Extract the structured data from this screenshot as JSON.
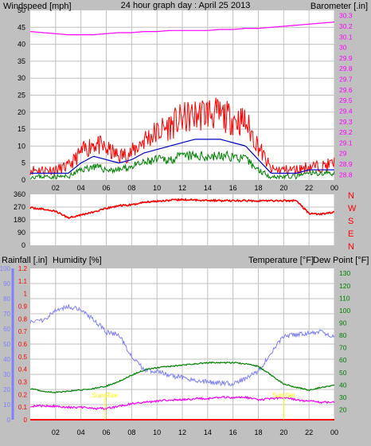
{
  "colors": {
    "background": "#c0c0c0",
    "plot_bg": "#ffffff",
    "windspeed": "#ff0000",
    "wind_avg": "#0000c0",
    "wind_min": "#008000",
    "barometer": "#ff00ff",
    "title": "#000080",
    "direction": "#ff0000",
    "rainfall": "#ff0000",
    "humidity": "#8080ff",
    "temperature": "#008000",
    "dew_point": "#ff00ff",
    "sun_label": "#ffff00",
    "grid": "#c0c0c0"
  },
  "chart_data": [
    {
      "type": "line",
      "panel": "wind-barometer",
      "title": "24 hour graph day : April 25 2013",
      "ylabel": "Windspeed [mph]",
      "y2label": "Barometer [.in]",
      "ylim": [
        0,
        50
      ],
      "y_ticks": [
        "0",
        "5",
        "10",
        "15",
        "20",
        "25",
        "30",
        "35",
        "40",
        "45",
        "50"
      ],
      "y2lim": [
        28.75,
        30.35
      ],
      "y2_ticks": [
        "28.8",
        "28.9",
        "29",
        "29.1",
        "29.2",
        "29.3",
        "29.4",
        "29.5",
        "29.6",
        "29.7",
        "29.8",
        "29.9",
        "30",
        "30.1",
        "30.2",
        "30.3"
      ],
      "x_ticks": [
        "02",
        "04",
        "06",
        "08",
        "10",
        "12",
        "14",
        "16",
        "18",
        "20",
        "22",
        "00"
      ],
      "grid": true,
      "x": [
        0,
        1,
        2,
        3,
        4,
        5,
        6,
        7,
        8,
        9,
        10,
        11,
        12,
        13,
        14,
        15,
        16,
        17,
        18,
        19,
        20,
        21,
        22,
        23,
        24
      ],
      "series": [
        {
          "key": "windspeed",
          "values": [
            3,
            3,
            3,
            4,
            8,
            11,
            9,
            7,
            8,
            12,
            14,
            16,
            18,
            19,
            20,
            19,
            18,
            17,
            10,
            3,
            3,
            3,
            4,
            4,
            5
          ]
        },
        {
          "key": "wind_avg",
          "values": [
            2,
            2,
            2,
            2,
            5,
            7,
            6,
            5,
            6,
            8,
            9,
            10,
            11,
            12,
            12,
            12,
            11,
            10,
            6,
            2,
            2,
            2,
            3,
            3,
            3
          ]
        },
        {
          "key": "wind_min",
          "values": [
            1,
            1,
            1,
            1,
            3,
            4,
            3,
            3,
            4,
            5,
            6,
            6,
            7,
            7,
            7,
            7,
            7,
            6,
            3,
            1,
            1,
            1,
            2,
            2,
            2
          ]
        },
        {
          "key": "barometer",
          "axis": "y2",
          "values": [
            30.15,
            30.14,
            30.13,
            30.12,
            30.12,
            30.12,
            30.13,
            30.14,
            30.14,
            30.15,
            30.15,
            30.16,
            30.16,
            30.16,
            30.16,
            30.17,
            30.17,
            30.18,
            30.18,
            30.19,
            30.2,
            30.21,
            30.22,
            30.23,
            30.24
          ]
        }
      ]
    },
    {
      "type": "line",
      "panel": "wind-direction",
      "ylim": [
        0,
        360
      ],
      "y_ticks": [
        "0",
        "90",
        "180",
        "270",
        "360"
      ],
      "compass_labels": [
        "N",
        "W",
        "S",
        "E",
        "N"
      ],
      "x_ticks": [
        "02",
        "04",
        "06",
        "08",
        "10",
        "12",
        "14",
        "16",
        "18",
        "20",
        "22",
        "00"
      ],
      "grid": true,
      "x": [
        0,
        1,
        2,
        3,
        4,
        5,
        6,
        7,
        8,
        9,
        10,
        11,
        12,
        13,
        14,
        15,
        16,
        17,
        18,
        19,
        20,
        21,
        22,
        23,
        24
      ],
      "series": [
        {
          "key": "direction",
          "values": [
            265,
            255,
            240,
            195,
            215,
            235,
            260,
            280,
            285,
            305,
            312,
            318,
            322,
            320,
            318,
            315,
            315,
            315,
            315,
            315,
            315,
            315,
            225,
            220,
            235
          ]
        }
      ]
    },
    {
      "type": "line",
      "panel": "rain-humidity-temperature",
      "ylabel": "Rainfall [.in]",
      "humidity_label": "Humidity [%]",
      "y2label": "Temperature [°F]",
      "dew_label": "Dew Point [°F]",
      "rain_lim": [
        0,
        1.2
      ],
      "rain_ticks": [
        "0",
        "0.1",
        "0.2",
        "0.3",
        "0.4",
        "0.5",
        "0.6",
        "0.7",
        "0.8",
        "0.9",
        "1",
        "1.1",
        "1.2"
      ],
      "humidity_lim": [
        0,
        100
      ],
      "humidity_ticks": [
        "0",
        "10",
        "20",
        "30",
        "40",
        "50",
        "60",
        "70",
        "80",
        "90",
        "100"
      ],
      "temp_lim": [
        12,
        134
      ],
      "temp_ticks": [
        "20",
        "30",
        "40",
        "50",
        "60",
        "70",
        "80",
        "90",
        "100",
        "110",
        "120",
        "130"
      ],
      "x_ticks": [
        "02",
        "04",
        "06",
        "08",
        "10",
        "12",
        "14",
        "16",
        "18",
        "20",
        "22",
        "00"
      ],
      "grid": true,
      "sun_rise_label": "Sun Rise",
      "sun_set_label": "Sun Set",
      "sunrise_hour": 5.9,
      "sunset_hour": 20.0,
      "x": [
        0,
        1,
        2,
        3,
        4,
        5,
        6,
        7,
        8,
        9,
        10,
        11,
        12,
        13,
        14,
        15,
        16,
        17,
        18,
        19,
        20,
        21,
        22,
        23,
        24
      ],
      "series": [
        {
          "key": "humidity",
          "axis": "humidity",
          "values": [
            65,
            66,
            72,
            75,
            73,
            66,
            58,
            56,
            42,
            33,
            32,
            29,
            28,
            26,
            25,
            24,
            24,
            27,
            32,
            44,
            55,
            56,
            57,
            58,
            55
          ]
        },
        {
          "key": "temperature",
          "axis": "temp",
          "values": [
            37,
            35,
            34,
            35,
            36,
            37,
            39,
            43,
            48,
            52,
            54,
            55,
            56,
            57,
            58,
            58,
            58,
            57,
            55,
            48,
            41,
            38,
            36,
            38,
            40
          ]
        },
        {
          "key": "dew_point",
          "axis": "temp",
          "values": [
            23,
            23,
            23,
            22,
            22,
            21,
            21,
            23,
            25,
            26,
            27,
            28,
            28,
            29,
            29,
            30,
            30,
            30,
            28,
            29,
            30,
            28,
            27,
            26,
            26
          ]
        },
        {
          "key": "rainfall",
          "axis": "rain",
          "values": [
            0,
            0,
            0,
            0,
            0,
            0,
            0,
            0,
            0,
            0,
            0,
            0,
            0,
            0,
            0,
            0,
            0,
            0,
            0,
            0,
            0,
            0,
            0,
            0,
            0
          ]
        }
      ]
    }
  ]
}
